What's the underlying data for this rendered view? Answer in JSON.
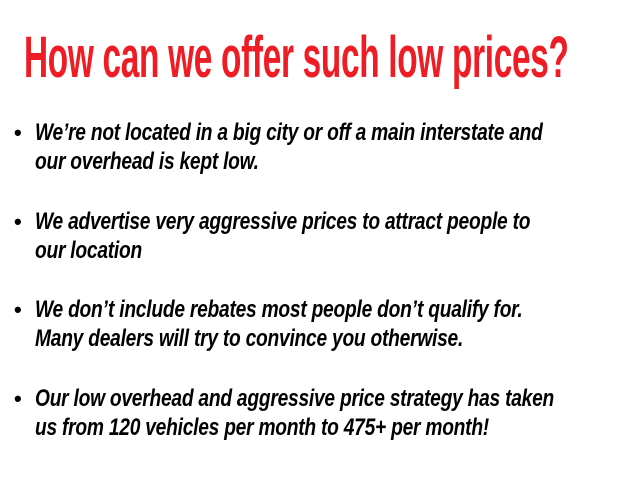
{
  "title": "How can we offer such low prices?",
  "accent_color": "#ee1c24",
  "bullets": [
    {
      "lines": [
        "We’re not located in a big city or off a main interstate and",
        "our overhead is kept low."
      ]
    },
    {
      "lines": [
        "We advertise very aggressive prices to attract people to",
        "our location"
      ]
    },
    {
      "lines": [
        "We don’t include rebates most people don’t qualify for.",
        "Many dealers will try to convince you otherwise."
      ]
    },
    {
      "lines": [
        "Our low overhead and aggressive price strategy has taken",
        "us from 120 vehicles per month to 475+ per month!"
      ]
    }
  ],
  "bullet_glyph": "•"
}
